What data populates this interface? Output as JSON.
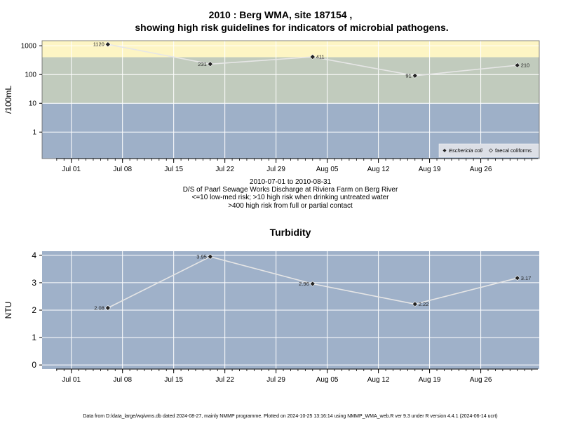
{
  "header": {
    "title_line1": "2010 : Berg WMA, site 187154 ,",
    "title_line2": "showing high risk guidelines for indicators of microbial pathogens."
  },
  "caption": {
    "line1": "2010-07-01 to 2010-08-31",
    "line2": "D/S of Paarl Sewage Works Discharge at Riviera Farm on Berg River",
    "line3": "<=10 low-med risk; >10 high risk when drinking untreated water",
    "line4": ">400 high risk from full or partial contact"
  },
  "footer": {
    "text": "Data from D:/data_large/wq/wms.db dated 2024-08-27, mainly NMMP programme. Plotted on 2024-10-25 13:16:14 using NMMP_WMA_web.R ver 9.3 under R version 4.4.1 (2024-06-14 ucrt)"
  },
  "colors": {
    "background": "#ffffff",
    "band_high": "#fdf5c4",
    "band_mid": "#c1cbbd",
    "band_low": "#9eb0c8",
    "turbidity_bg": "#9fb1c9",
    "grid": "#ffffff",
    "line": "#e6e6e6",
    "marker": "#222222"
  },
  "chart_data": [
    {
      "type": "line",
      "panel": "microbial",
      "title": "",
      "xlabel": "",
      "ylabel": "/100mL",
      "yscale": "log",
      "ylim": [
        0.12,
        1500
      ],
      "yticks": [
        1,
        10,
        100,
        1000
      ],
      "ytick_labels": [
        "1",
        "10",
        "100",
        "1000"
      ],
      "x_range": [
        "2010-06-27",
        "2010-09-03"
      ],
      "xticks": [
        "2010-07-01",
        "2010-07-08",
        "2010-07-15",
        "2010-07-22",
        "2010-07-29",
        "2010-08-05",
        "2010-08-12",
        "2010-08-19",
        "2010-08-26"
      ],
      "xtick_labels": [
        "Jul 01",
        "Jul 08",
        "Jul 15",
        "Jul 22",
        "Jul 29",
        "Aug 05",
        "Aug 12",
        "Aug 19",
        "Aug 26"
      ],
      "grid": true,
      "risk_bands": [
        {
          "from": 400,
          "to": 1500,
          "color_key": "band_high"
        },
        {
          "from": 10,
          "to": 400,
          "color_key": "band_mid"
        },
        {
          "from": 0.12,
          "to": 10,
          "color_key": "band_low"
        }
      ],
      "series": [
        {
          "name": "Eschericia coli",
          "marker": "filled-diamond",
          "x": [
            "2010-07-06",
            "2010-07-20",
            "2010-08-03",
            "2010-08-17",
            "2010-08-31"
          ],
          "y": [
            1120,
            231,
            411,
            91,
            210
          ],
          "labels": [
            "1120",
            "231",
            "411",
            "91",
            "210"
          ],
          "label_side": [
            "left",
            "left",
            "right",
            "left",
            "right"
          ]
        }
      ],
      "legend": {
        "placement": "bottom-right",
        "entries": [
          {
            "label": "Eschericia coli",
            "marker": "filled-diamond",
            "italic": true
          },
          {
            "label": "faecal coliforms",
            "marker": "open-diamond",
            "italic": false
          }
        ]
      }
    },
    {
      "type": "line",
      "panel": "turbidity",
      "title": "Turbidity",
      "xlabel": "",
      "ylabel": "NTU",
      "yscale": "linear",
      "ylim": [
        -0.15,
        4.15
      ],
      "yticks": [
        0,
        1,
        2,
        3,
        4
      ],
      "ytick_labels": [
        "0",
        "1",
        "2",
        "3",
        "4"
      ],
      "x_range": [
        "2010-06-27",
        "2010-09-03"
      ],
      "xticks": [
        "2010-07-01",
        "2010-07-08",
        "2010-07-15",
        "2010-07-22",
        "2010-07-29",
        "2010-08-05",
        "2010-08-12",
        "2010-08-19",
        "2010-08-26"
      ],
      "xtick_labels": [
        "Jul 01",
        "Jul 08",
        "Jul 15",
        "Jul 22",
        "Jul 29",
        "Aug 05",
        "Aug 12",
        "Aug 19",
        "Aug 26"
      ],
      "grid": true,
      "series": [
        {
          "name": "",
          "marker": "filled-diamond",
          "x": [
            "2010-07-06",
            "2010-07-20",
            "2010-08-03",
            "2010-08-17",
            "2010-08-31"
          ],
          "y": [
            2.08,
            3.95,
            2.96,
            2.22,
            3.17
          ],
          "labels": [
            "2.08",
            "3.95",
            "2.96",
            "2.22",
            "3.17"
          ],
          "label_side": [
            "left",
            "left",
            "left",
            "right",
            "right"
          ]
        }
      ]
    }
  ]
}
